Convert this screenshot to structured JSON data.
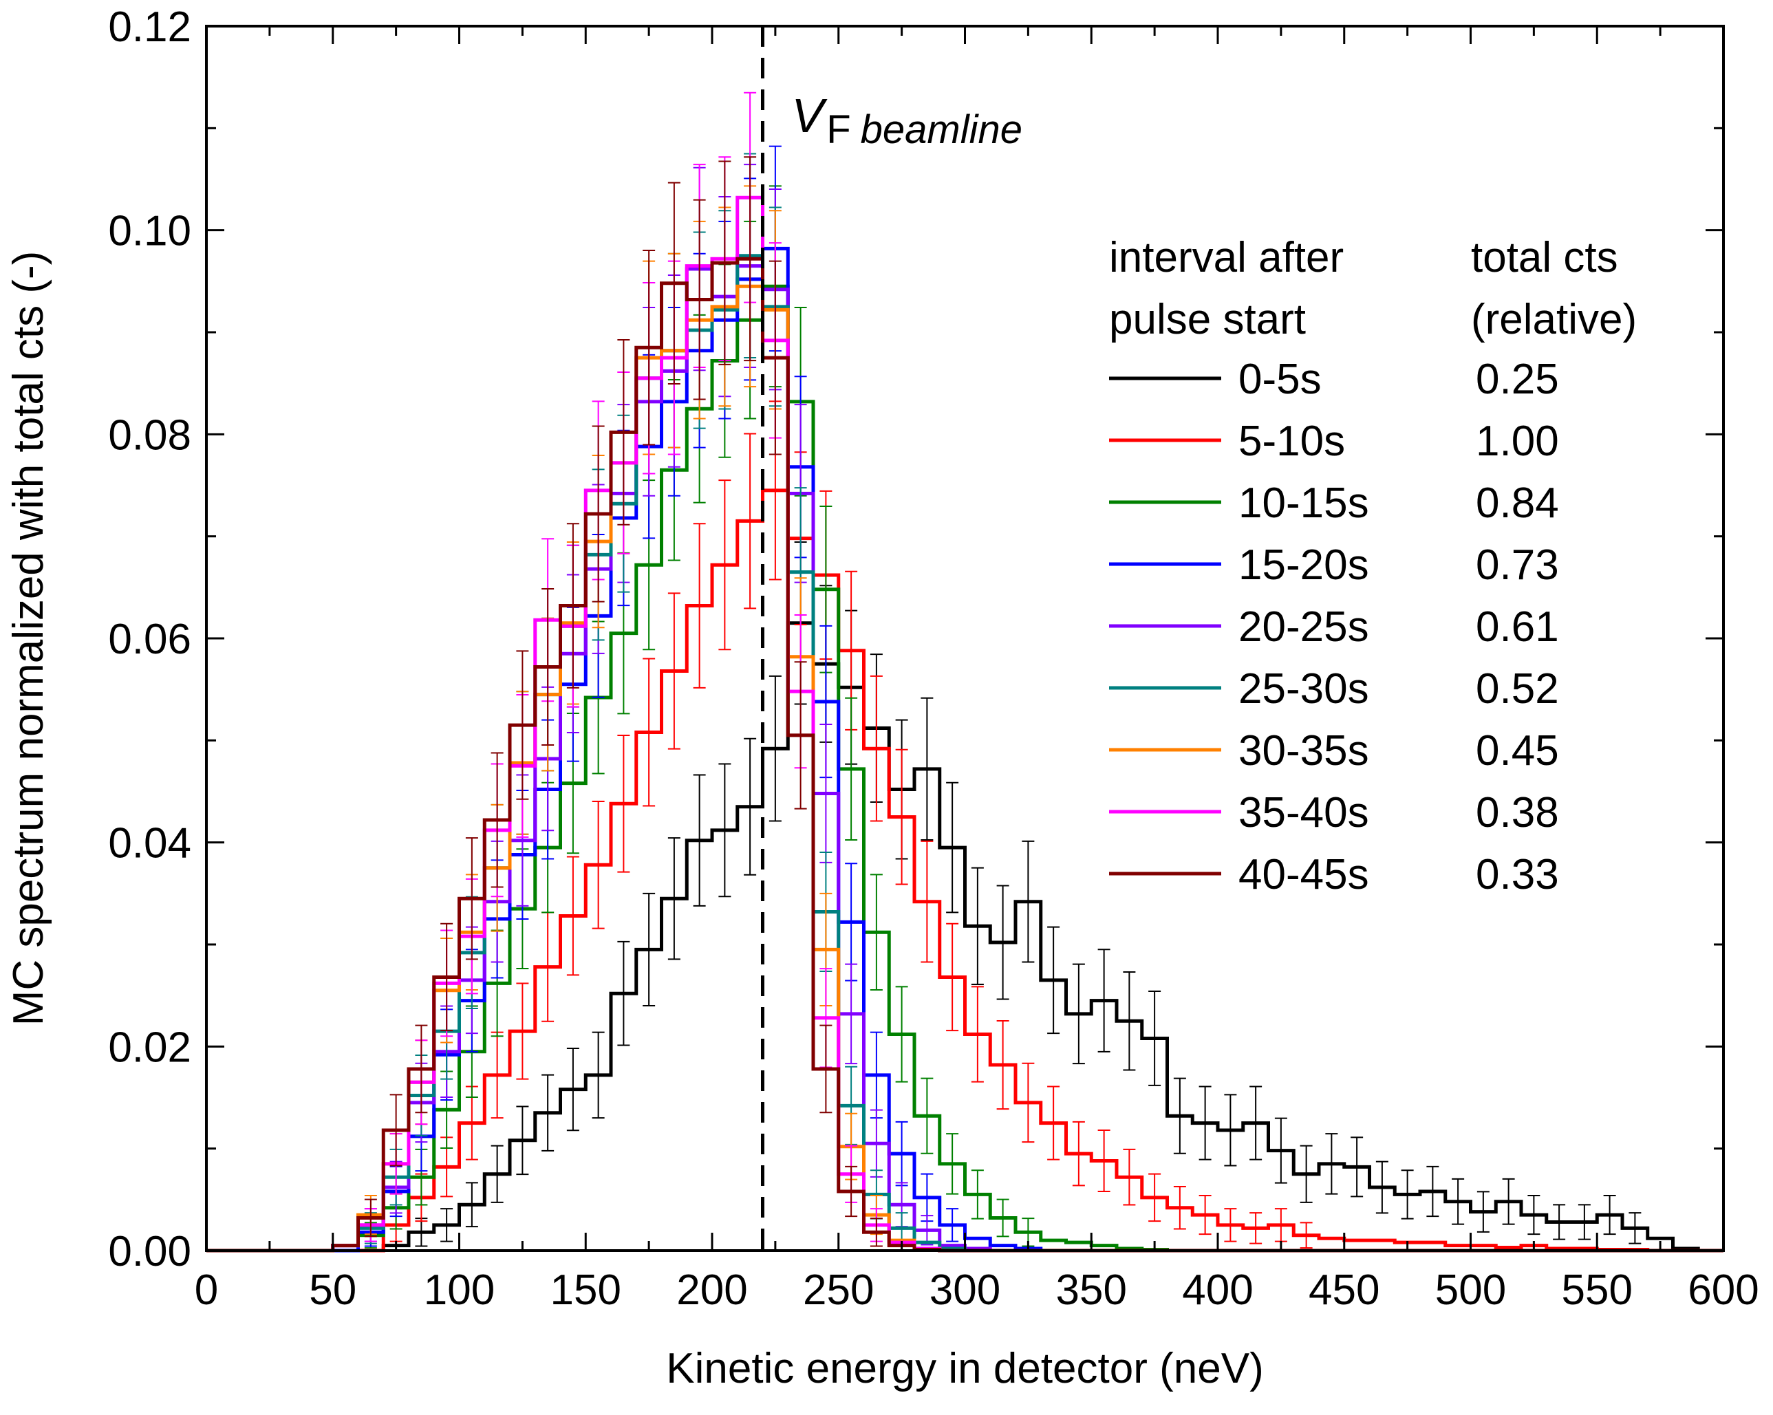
{
  "chart_data": {
    "type": "step",
    "xlabel": "Kinetic energy in detector (neV)",
    "ylabel": "MC spectrum normalized with total cts (-)",
    "xlim": [
      0,
      600
    ],
    "ylim": [
      0,
      0.12
    ],
    "x_ticks": [
      "0",
      "50",
      "100",
      "150",
      "200",
      "250",
      "300",
      "350",
      "400",
      "450",
      "500",
      "550",
      "600"
    ],
    "y_ticks": [
      "0.00",
      "0.02",
      "0.04",
      "0.06",
      "0.08",
      "0.10",
      "0.12"
    ],
    "grid": false,
    "legend_position": "right",
    "bin_width": 10,
    "bin_start": 0,
    "legend_header": {
      "col1_line1": "interval after",
      "col1_line2": "pulse start",
      "col2_line1": "total cts",
      "col2_line2": "(relative)"
    },
    "vline": {
      "x": 220,
      "label_main": "V",
      "label_sub1": "F",
      "label_sub2": "beamline",
      "style": "dashed"
    },
    "series": [
      {
        "name": "0-5s",
        "relative": "0.25",
        "color": "#000000",
        "values": [
          0,
          0,
          0,
          0,
          0,
          0,
          0,
          0.0005,
          0.0018,
          0.0025,
          0.0045,
          0.0075,
          0.0108,
          0.0135,
          0.0158,
          0.0172,
          0.0252,
          0.0295,
          0.0345,
          0.0402,
          0.0412,
          0.0435,
          0.0492,
          0.0615,
          0.0575,
          0.0552,
          0.0512,
          0.0452,
          0.0472,
          0.0395,
          0.0318,
          0.0302,
          0.0342,
          0.0265,
          0.0232,
          0.0245,
          0.0225,
          0.0208,
          0.0132,
          0.0125,
          0.0118,
          0.0125,
          0.0098,
          0.0075,
          0.0085,
          0.0082,
          0.0062,
          0.0055,
          0.0058,
          0.0048,
          0.0038,
          0.0048,
          0.0035,
          0.0028,
          0.0028,
          0.0035,
          0.0022,
          0.0012,
          0.0002,
          0
        ]
      },
      {
        "name": "5-10s",
        "relative": "1.00",
        "color": "#ff0000",
        "values": [
          0,
          0,
          0,
          0,
          0,
          0,
          0,
          0.0025,
          0.0052,
          0.0082,
          0.0125,
          0.0172,
          0.0215,
          0.0278,
          0.0328,
          0.0378,
          0.0438,
          0.0508,
          0.0568,
          0.0632,
          0.0672,
          0.0715,
          0.0745,
          0.0698,
          0.0662,
          0.0588,
          0.0492,
          0.0425,
          0.0342,
          0.0268,
          0.0212,
          0.0182,
          0.0145,
          0.0125,
          0.0095,
          0.0088,
          0.0072,
          0.0052,
          0.0042,
          0.0035,
          0.0025,
          0.0022,
          0.0025,
          0.0015,
          0.0012,
          0.001,
          0.001,
          0.0008,
          0.0008,
          0.0005,
          0.0005,
          0.0003,
          0.0005,
          0.0002,
          0.0002,
          0.0001,
          0.0001,
          0,
          0,
          0
        ]
      },
      {
        "name": "10-15s",
        "relative": "0.84",
        "color": "#008000",
        "values": [
          0,
          0,
          0,
          0,
          0,
          0,
          0.0015,
          0.0042,
          0.0072,
          0.0138,
          0.0195,
          0.0262,
          0.0335,
          0.0395,
          0.0458,
          0.0542,
          0.0605,
          0.0672,
          0.0765,
          0.0825,
          0.0872,
          0.0912,
          0.0945,
          0.0832,
          0.0648,
          0.0472,
          0.0312,
          0.0212,
          0.0132,
          0.0085,
          0.0055,
          0.0032,
          0.0018,
          0.001,
          0.0008,
          0.0005,
          0.0002,
          0.0001,
          0,
          0,
          0,
          0,
          0,
          0,
          0,
          0,
          0,
          0,
          0,
          0,
          0,
          0,
          0,
          0,
          0,
          0,
          0,
          0,
          0,
          0
        ]
      },
      {
        "name": "15-20s",
        "relative": "0.73",
        "color": "#0000ff",
        "values": [
          0,
          0,
          0,
          0,
          0,
          0,
          0.0018,
          0.0058,
          0.0112,
          0.0192,
          0.0245,
          0.0325,
          0.0388,
          0.0452,
          0.0555,
          0.0622,
          0.0718,
          0.0788,
          0.0832,
          0.0882,
          0.0912,
          0.0952,
          0.0982,
          0.0768,
          0.0538,
          0.0322,
          0.0172,
          0.0095,
          0.0052,
          0.0025,
          0.0012,
          0.0005,
          0.0002,
          0,
          0,
          0,
          0,
          0,
          0,
          0,
          0,
          0,
          0,
          0,
          0,
          0,
          0,
          0,
          0,
          0,
          0,
          0,
          0,
          0,
          0,
          0,
          0,
          0,
          0,
          0
        ]
      },
      {
        "name": "20-25s",
        "relative": "0.61",
        "color": "#8000ff",
        "values": [
          0,
          0,
          0,
          0,
          0,
          0.0005,
          0.0025,
          0.0062,
          0.0145,
          0.0195,
          0.0265,
          0.0342,
          0.0402,
          0.0482,
          0.0585,
          0.0668,
          0.0742,
          0.0832,
          0.0862,
          0.0962,
          0.0935,
          0.0965,
          0.0942,
          0.0742,
          0.0448,
          0.0232,
          0.0105,
          0.0045,
          0.002,
          0.0005,
          0.0002,
          0,
          0,
          0,
          0,
          0,
          0,
          0,
          0,
          0,
          0,
          0,
          0,
          0,
          0,
          0,
          0,
          0,
          0,
          0,
          0,
          0,
          0,
          0,
          0,
          0,
          0,
          0,
          0,
          0
        ]
      },
      {
        "name": "25-30s",
        "relative": "0.52",
        "color": "#008080",
        "values": [
          0,
          0,
          0,
          0,
          0,
          0.0005,
          0.0022,
          0.0072,
          0.0152,
          0.0215,
          0.0292,
          0.0375,
          0.0478,
          0.0545,
          0.0612,
          0.0682,
          0.0732,
          0.0855,
          0.0882,
          0.0902,
          0.0922,
          0.0975,
          0.0925,
          0.0665,
          0.0332,
          0.0142,
          0.0055,
          0.0022,
          0.0008,
          0.0002,
          0,
          0,
          0,
          0,
          0,
          0,
          0,
          0,
          0,
          0,
          0,
          0,
          0,
          0,
          0,
          0,
          0,
          0,
          0,
          0,
          0,
          0,
          0,
          0,
          0,
          0,
          0,
          0,
          0,
          0
        ]
      },
      {
        "name": "30-35s",
        "relative": "0.45",
        "color": "#ff8000",
        "values": [
          0,
          0,
          0,
          0,
          0,
          0.0005,
          0.0035,
          0.0085,
          0.0165,
          0.0255,
          0.0312,
          0.0375,
          0.0478,
          0.0545,
          0.0615,
          0.0695,
          0.0772,
          0.0875,
          0.0882,
          0.0912,
          0.0925,
          0.0945,
          0.0922,
          0.0582,
          0.0295,
          0.0102,
          0.0035,
          0.001,
          0.0002,
          0,
          0,
          0,
          0,
          0,
          0,
          0,
          0,
          0,
          0,
          0,
          0,
          0,
          0,
          0,
          0,
          0,
          0,
          0,
          0,
          0,
          0,
          0,
          0,
          0,
          0,
          0,
          0,
          0,
          0,
          0
        ]
      },
      {
        "name": "35-40s",
        "relative": "0.38",
        "color": "#ff00ff",
        "values": [
          0,
          0,
          0,
          0,
          0,
          0.0005,
          0.0025,
          0.0085,
          0.0165,
          0.0262,
          0.0308,
          0.0412,
          0.0475,
          0.0618,
          0.0612,
          0.0745,
          0.0772,
          0.0855,
          0.0875,
          0.0965,
          0.0972,
          0.1032,
          0.0892,
          0.0548,
          0.0228,
          0.0075,
          0.0025,
          0.0008,
          0.0002,
          0,
          0,
          0,
          0,
          0,
          0,
          0,
          0,
          0,
          0,
          0,
          0,
          0,
          0,
          0,
          0,
          0,
          0,
          0,
          0,
          0,
          0,
          0,
          0,
          0,
          0,
          0,
          0,
          0,
          0,
          0
        ]
      },
      {
        "name": "40-45s",
        "relative": "0.33",
        "color": "#800000",
        "values": [
          0,
          0,
          0,
          0,
          0,
          0.0005,
          0.0032,
          0.0118,
          0.0178,
          0.0268,
          0.0345,
          0.0422,
          0.0515,
          0.0572,
          0.0632,
          0.0722,
          0.0802,
          0.0885,
          0.0948,
          0.0932,
          0.0968,
          0.0972,
          0.0875,
          0.0505,
          0.0178,
          0.0058,
          0.0018,
          0.0005,
          0.0001,
          0,
          0,
          0,
          0,
          0,
          0,
          0,
          0,
          0,
          0,
          0,
          0,
          0,
          0,
          0,
          0,
          0,
          0,
          0,
          0,
          0,
          0,
          0,
          0,
          0,
          0,
          0,
          0,
          0,
          0,
          0
        ]
      }
    ]
  }
}
